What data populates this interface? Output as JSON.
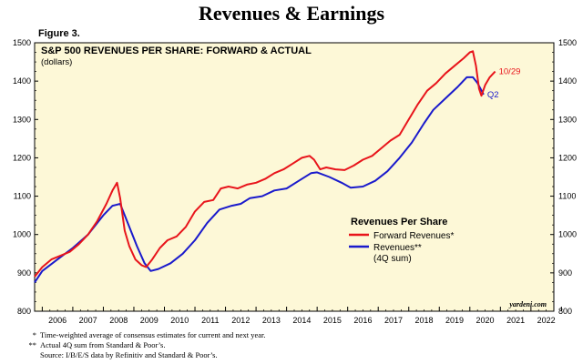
{
  "page_title": "Revenues & Earnings",
  "figure_label": "Figure 3.",
  "footnotes": [
    {
      "mark": "*",
      "text": "Time-weighted average of consensus estimates for current and next year."
    },
    {
      "mark": "**",
      "text": "Actual 4Q sum from Standard & Poor’s."
    },
    {
      "mark": "",
      "text": "Source: I/B/E/S data by Refinitiv and Standard & Poor’s."
    }
  ],
  "colors": {
    "plot_bg": "#fdf8d7",
    "forward": "#e8141b",
    "actual": "#1a1acc"
  },
  "chart_data": {
    "type": "line",
    "title": "S&P 500 REVENUES PER SHARE: FORWARD & ACTUAL",
    "subtitle": "(dollars)",
    "legend_title": "Revenues Per Share",
    "legend_position": "center-right",
    "watermark": "yardeni.com",
    "grid": false,
    "x_range": [
      2005.75,
      2022.75
    ],
    "ylim": [
      800,
      1500
    ],
    "y_ticks": [
      "800",
      "900",
      "1000",
      "1100",
      "1200",
      "1300",
      "1400",
      "1500"
    ],
    "x_tick_labels": [
      "2006",
      "2007",
      "2008",
      "2009",
      "2010",
      "2011",
      "2012",
      "2013",
      "2014",
      "2015",
      "2016",
      "2017",
      "2018",
      "2019",
      "2020",
      "2021",
      "2022"
    ],
    "series": [
      {
        "name": "Forward Revenues*",
        "end_label": "10/29",
        "points": [
          [
            2005.75,
            890
          ],
          [
            2006.0,
            915
          ],
          [
            2006.3,
            935
          ],
          [
            2006.6,
            945
          ],
          [
            2006.9,
            955
          ],
          [
            2007.2,
            975
          ],
          [
            2007.5,
            1000
          ],
          [
            2007.8,
            1035
          ],
          [
            2008.1,
            1080
          ],
          [
            2008.3,
            1115
          ],
          [
            2008.45,
            1135
          ],
          [
            2008.55,
            1095
          ],
          [
            2008.7,
            1010
          ],
          [
            2008.85,
            970
          ],
          [
            2009.05,
            935
          ],
          [
            2009.25,
            920
          ],
          [
            2009.4,
            915
          ],
          [
            2009.6,
            935
          ],
          [
            2009.85,
            965
          ],
          [
            2010.1,
            985
          ],
          [
            2010.4,
            995
          ],
          [
            2010.7,
            1020
          ],
          [
            2011.0,
            1060
          ],
          [
            2011.3,
            1085
          ],
          [
            2011.6,
            1090
          ],
          [
            2011.85,
            1120
          ],
          [
            2012.1,
            1125
          ],
          [
            2012.4,
            1120
          ],
          [
            2012.7,
            1130
          ],
          [
            2013.0,
            1135
          ],
          [
            2013.3,
            1145
          ],
          [
            2013.6,
            1160
          ],
          [
            2013.9,
            1170
          ],
          [
            2014.2,
            1185
          ],
          [
            2014.5,
            1200
          ],
          [
            2014.75,
            1205
          ],
          [
            2014.9,
            1195
          ],
          [
            2015.1,
            1170
          ],
          [
            2015.3,
            1175
          ],
          [
            2015.6,
            1170
          ],
          [
            2015.9,
            1168
          ],
          [
            2016.2,
            1180
          ],
          [
            2016.5,
            1195
          ],
          [
            2016.8,
            1205
          ],
          [
            2017.1,
            1225
          ],
          [
            2017.4,
            1245
          ],
          [
            2017.7,
            1260
          ],
          [
            2018.0,
            1300
          ],
          [
            2018.3,
            1340
          ],
          [
            2018.6,
            1375
          ],
          [
            2018.9,
            1395
          ],
          [
            2019.2,
            1420
          ],
          [
            2019.5,
            1440
          ],
          [
            2019.8,
            1460
          ],
          [
            2020.0,
            1475
          ],
          [
            2020.1,
            1478
          ],
          [
            2020.2,
            1440
          ],
          [
            2020.3,
            1380
          ],
          [
            2020.38,
            1362
          ],
          [
            2020.5,
            1390
          ],
          [
            2020.65,
            1410
          ],
          [
            2020.83,
            1425
          ]
        ]
      },
      {
        "name": "Revenues**",
        "name_line2": "(4Q sum)",
        "end_label": "Q2",
        "points": [
          [
            2005.75,
            875
          ],
          [
            2006.0,
            905
          ],
          [
            2006.5,
            935
          ],
          [
            2007.0,
            965
          ],
          [
            2007.5,
            1000
          ],
          [
            2008.0,
            1050
          ],
          [
            2008.3,
            1075
          ],
          [
            2008.55,
            1080
          ],
          [
            2008.8,
            1030
          ],
          [
            2009.1,
            970
          ],
          [
            2009.35,
            925
          ],
          [
            2009.55,
            905
          ],
          [
            2009.8,
            910
          ],
          [
            2010.2,
            925
          ],
          [
            2010.6,
            950
          ],
          [
            2011.0,
            985
          ],
          [
            2011.4,
            1030
          ],
          [
            2011.8,
            1065
          ],
          [
            2012.2,
            1075
          ],
          [
            2012.5,
            1080
          ],
          [
            2012.8,
            1095
          ],
          [
            2013.2,
            1100
          ],
          [
            2013.6,
            1115
          ],
          [
            2014.0,
            1120
          ],
          [
            2014.4,
            1140
          ],
          [
            2014.8,
            1160
          ],
          [
            2015.0,
            1162
          ],
          [
            2015.4,
            1150
          ],
          [
            2015.8,
            1135
          ],
          [
            2016.1,
            1122
          ],
          [
            2016.5,
            1125
          ],
          [
            2016.9,
            1140
          ],
          [
            2017.3,
            1165
          ],
          [
            2017.7,
            1200
          ],
          [
            2018.1,
            1240
          ],
          [
            2018.5,
            1290
          ],
          [
            2018.8,
            1325
          ],
          [
            2019.2,
            1355
          ],
          [
            2019.6,
            1385
          ],
          [
            2019.9,
            1410
          ],
          [
            2020.1,
            1410
          ],
          [
            2020.25,
            1395
          ],
          [
            2020.45,
            1365
          ]
        ]
      }
    ]
  }
}
